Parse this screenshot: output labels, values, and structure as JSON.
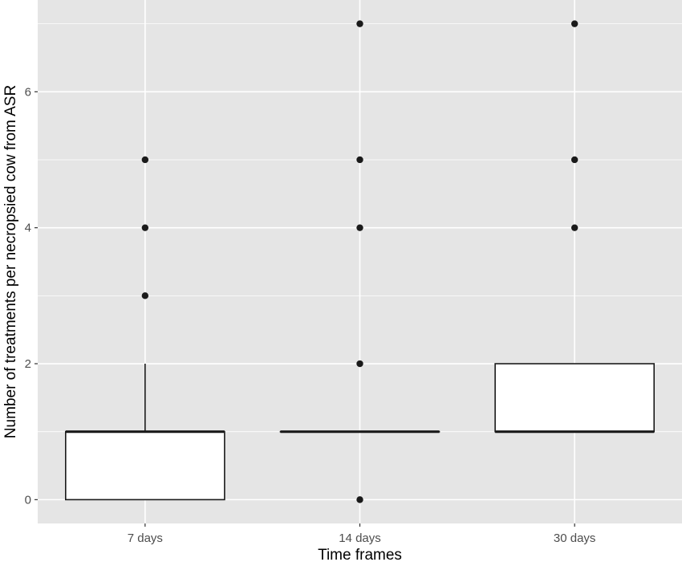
{
  "chart_data": {
    "type": "boxplot",
    "title": "",
    "xlabel": "Time frames",
    "ylabel": "Number of treatments per necropsied cow from ASR",
    "categories": [
      "7 days",
      "14 days",
      "30 days"
    ],
    "boxes": [
      {
        "category": "7 days",
        "whisker_low": 0,
        "q1": 0,
        "median": 1,
        "q3": 1,
        "whisker_high": 2,
        "outliers": [
          3,
          4,
          5
        ]
      },
      {
        "category": "14 days",
        "whisker_low": 1,
        "q1": 1,
        "median": 1,
        "q3": 1,
        "whisker_high": 1,
        "outliers": [
          0,
          2,
          4,
          5,
          7
        ]
      },
      {
        "category": "30 days",
        "whisker_low": 1,
        "q1": 1,
        "median": 1,
        "q3": 2,
        "whisker_high": 2,
        "outliers": [
          4,
          5,
          7
        ]
      }
    ],
    "yticks": [
      0,
      2,
      4,
      6
    ],
    "ylim": [
      -0.35,
      7.35
    ],
    "grid": true,
    "legend": "none",
    "colors": {
      "panel_background": "#e5e5e5",
      "grid_line": "#ffffff",
      "box_fill": "#ffffff",
      "box_stroke": "#1a1a1a",
      "point": "#1a1a1a",
      "tick_label": "#4d4d4d"
    }
  }
}
